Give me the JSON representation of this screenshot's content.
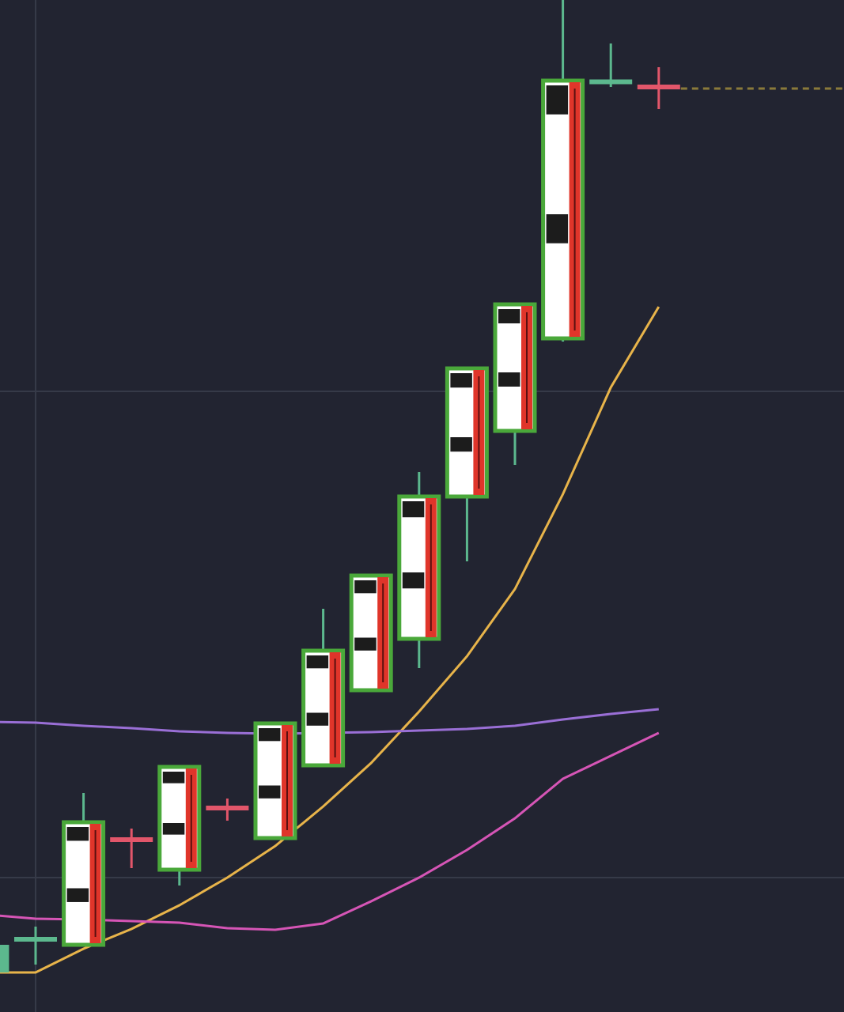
{
  "chart_data": {
    "type": "candlestick",
    "categories": [
      null,
      null,
      null,
      null,
      null,
      null,
      null,
      null,
      null,
      null,
      null,
      null,
      null,
      null,
      null
    ],
    "open": [
      50,
      92,
      85,
      220,
      180,
      260,
      220,
      312,
      407,
      472,
      652,
      735,
      852,
      1175,
      1172
    ],
    "high": [
      85,
      108,
      277,
      232,
      310,
      270,
      365,
      510,
      552,
      683,
      814,
      895,
      1280,
      1225,
      1195
    ],
    "low": [
      50,
      60,
      85,
      182,
      160,
      242,
      220,
      312,
      407,
      435,
      570,
      692,
      848,
      1170,
      1142
    ],
    "close": [
      85,
      92,
      240,
      216,
      310,
      256,
      365,
      457,
      552,
      652,
      814,
      895,
      1178,
      1178,
      1168
    ],
    "up_color": "#5cb88e",
    "down_color": "#e2566a",
    "lines": [
      {
        "color": "#e8b44a",
        "values": [
          50,
          50,
          80,
          105,
          135,
          170,
          210,
          260,
          315,
          380,
          450,
          535,
          655,
          790,
          892
        ]
      },
      {
        "color": "#9a6fd6",
        "values": [
          367,
          366,
          362,
          359,
          355,
          353,
          352,
          353,
          354,
          356,
          358,
          362,
          370,
          377,
          383
        ]
      },
      {
        "color": "#d655b6",
        "values": [
          123,
          118,
          117,
          115,
          113,
          106,
          104,
          112,
          140,
          170,
          205,
          245,
          295,
          324,
          353
        ]
      }
    ],
    "ylim": [
      0,
      1280
    ],
    "yticks": [
      170,
      785
    ],
    "grid": true,
    "price_line": true
  }
}
